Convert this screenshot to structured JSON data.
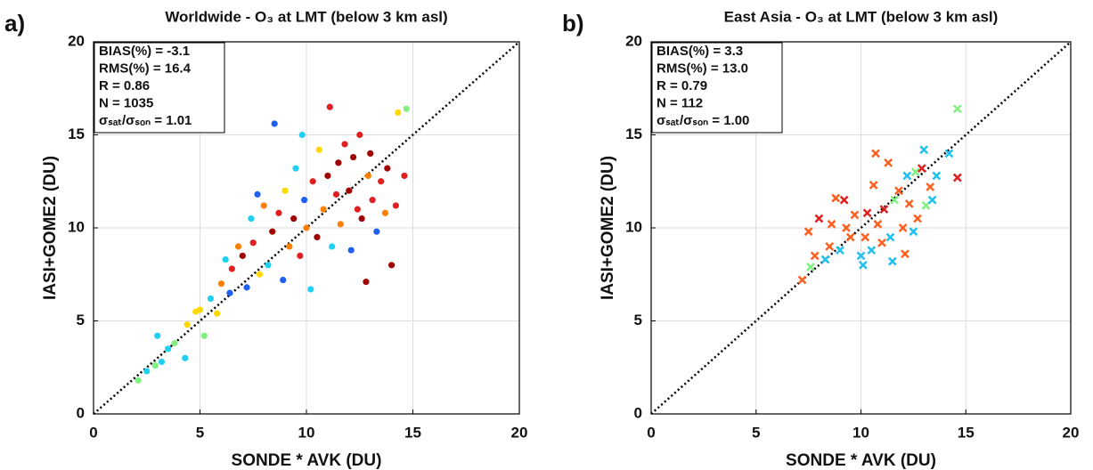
{
  "chart_data": [
    {
      "type": "scatter",
      "marker": "circle",
      "panel_label": "a)",
      "title": "Worldwide - O₃ at LMT (below 3 km asl)",
      "stats": [
        "BIAS(%) = -3.1",
        "RMS(%) = 16.4",
        "R = 0.86",
        "N = 1035",
        "σₛₐₜ/σₛₒₙ = 1.01"
      ],
      "xlabel": "SONDE * AVK (DU)",
      "ylabel": "IASI+GOME2 (DU)",
      "xlim": [
        0,
        20
      ],
      "ylim": [
        0,
        20
      ],
      "xticks": [
        0,
        5,
        10,
        15,
        20
      ],
      "yticks": [
        0,
        5,
        10,
        15,
        20
      ],
      "grid": true,
      "x": [
        2.1,
        2.5,
        2.9,
        3.0,
        3.2,
        3.5,
        3.8,
        4.3,
        4.4,
        4.8,
        5.0,
        5.2,
        5.5,
        5.8,
        6.0,
        6.2,
        6.4,
        6.5,
        6.8,
        7.0,
        7.2,
        7.4,
        7.5,
        7.8,
        8.0,
        8.2,
        8.4,
        8.5,
        8.7,
        8.9,
        9.0,
        9.2,
        9.4,
        9.5,
        9.7,
        9.9,
        10.0,
        10.2,
        10.3,
        10.5,
        10.6,
        10.8,
        11.0,
        11.1,
        11.2,
        11.4,
        11.5,
        11.6,
        11.8,
        12.0,
        12.1,
        12.2,
        12.4,
        12.5,
        12.6,
        12.8,
        12.9,
        13.0,
        13.1,
        13.3,
        13.5,
        13.7,
        13.8,
        14.0,
        14.2,
        14.3,
        14.6,
        14.7,
        9.8,
        7.7
      ],
      "values": [
        1.8,
        2.3,
        2.6,
        4.2,
        2.8,
        3.5,
        3.8,
        3.0,
        4.8,
        5.5,
        5.6,
        4.2,
        6.2,
        5.4,
        7.0,
        8.3,
        6.5,
        7.8,
        9.0,
        8.5,
        6.8,
        10.5,
        9.2,
        7.5,
        11.2,
        8.0,
        9.8,
        15.6,
        10.8,
        7.2,
        12.0,
        9.0,
        10.5,
        13.2,
        8.5,
        11.5,
        10.0,
        6.7,
        12.5,
        9.5,
        14.2,
        11.0,
        12.8,
        16.5,
        9.0,
        11.8,
        13.5,
        10.2,
        14.5,
        12.0,
        8.8,
        13.8,
        11.0,
        15.0,
        10.5,
        7.1,
        12.8,
        14.0,
        11.5,
        9.8,
        12.5,
        10.8,
        13.2,
        8.0,
        11.2,
        16.2,
        12.8,
        16.4,
        15.0,
        11.8
      ],
      "colors": [
        "#80f080",
        "#20d0f0",
        "#80f080",
        "#20d0f0",
        "#20d0f0",
        "#20d0f0",
        "#80f080",
        "#20d0f0",
        "#ffd800",
        "#ffd800",
        "#ffd800",
        "#80f080",
        "#20d0f0",
        "#ffd800",
        "#ff8000",
        "#20d0f0",
        "#2060f0",
        "#e02020",
        "#ff8000",
        "#a00000",
        "#2060f0",
        "#20d0f0",
        "#e02020",
        "#ffd800",
        "#ff8000",
        "#20d0f0",
        "#a00000",
        "#2060f0",
        "#e02020",
        "#2060f0",
        "#ffd800",
        "#ff8000",
        "#a00000",
        "#20d0f0",
        "#e02020",
        "#2060f0",
        "#ff8000",
        "#20d0f0",
        "#e02020",
        "#a00000",
        "#ffd800",
        "#ff8000",
        "#a00000",
        "#e02020",
        "#20d0f0",
        "#e02020",
        "#a00000",
        "#ff8000",
        "#e02020",
        "#a00000",
        "#2060f0",
        "#a00000",
        "#e02020",
        "#e02020",
        "#a00000",
        "#a00000",
        "#ff8000",
        "#a00000",
        "#e02020",
        "#2060f0",
        "#e02020",
        "#ff8000",
        "#a00000",
        "#a00000",
        "#e02020",
        "#ffd800",
        "#e02020",
        "#80f080",
        "#20d0f0",
        "#2060f0"
      ]
    },
    {
      "type": "scatter",
      "marker": "cross",
      "panel_label": "b)",
      "title": "East Asia - O₃ at LMT (below 3 km asl)",
      "stats": [
        "BIAS(%) = 3.3",
        "RMS(%) = 13.0",
        "R = 0.79",
        "N = 112",
        "σₛₐₜ/σₛₒₙ = 1.00"
      ],
      "xlabel": "SONDE * AVK (DU)",
      "ylabel": "IASI+GOME2 (DU)",
      "xlim": [
        0,
        20
      ],
      "ylim": [
        0,
        20
      ],
      "xticks": [
        0,
        5,
        10,
        15,
        20
      ],
      "yticks": [
        0,
        5,
        10,
        15,
        20
      ],
      "grid": true,
      "x": [
        7.2,
        7.5,
        7.6,
        7.8,
        8.0,
        8.3,
        8.5,
        8.6,
        8.8,
        9.0,
        9.2,
        9.3,
        9.5,
        9.7,
        10.0,
        10.1,
        10.2,
        10.3,
        10.5,
        10.6,
        10.7,
        10.8,
        11.0,
        11.1,
        11.3,
        11.4,
        11.5,
        11.6,
        11.8,
        12.0,
        12.1,
        12.2,
        12.3,
        12.5,
        12.6,
        12.7,
        12.9,
        13.0,
        13.1,
        13.3,
        13.4,
        13.6,
        14.2,
        14.6,
        14.6
      ],
      "values": [
        7.2,
        9.8,
        7.9,
        8.5,
        10.5,
        8.3,
        9.0,
        10.2,
        11.6,
        8.8,
        11.5,
        10.0,
        9.5,
        10.7,
        8.5,
        8.0,
        9.5,
        10.8,
        8.8,
        12.3,
        14.0,
        10.2,
        9.2,
        11.0,
        13.5,
        9.5,
        8.2,
        11.5,
        12.0,
        10.0,
        8.6,
        12.8,
        11.3,
        9.8,
        13.0,
        10.5,
        13.2,
        14.2,
        11.2,
        12.2,
        11.5,
        12.8,
        14.0,
        16.4,
        12.7
      ],
      "colors": [
        "#ff6020",
        "#ff6020",
        "#80f080",
        "#ff6020",
        "#e02020",
        "#20c0f0",
        "#ff6020",
        "#ff6020",
        "#ff6020",
        "#20c0f0",
        "#e02020",
        "#ff6020",
        "#ff6020",
        "#ff6020",
        "#20c0f0",
        "#20c0f0",
        "#ff6020",
        "#e02020",
        "#20c0f0",
        "#ff6020",
        "#ff6020",
        "#ff6020",
        "#ff6020",
        "#e02020",
        "#ff6020",
        "#20c0f0",
        "#20c0f0",
        "#80f080",
        "#ff6020",
        "#ff6020",
        "#ff6020",
        "#20c0f0",
        "#ff6020",
        "#20c0f0",
        "#80f080",
        "#ff6020",
        "#e02020",
        "#20c0f0",
        "#80f080",
        "#ff6020",
        "#20c0f0",
        "#20c0f0",
        "#20c0f0",
        "#80f080",
        "#e02020"
      ]
    }
  ]
}
